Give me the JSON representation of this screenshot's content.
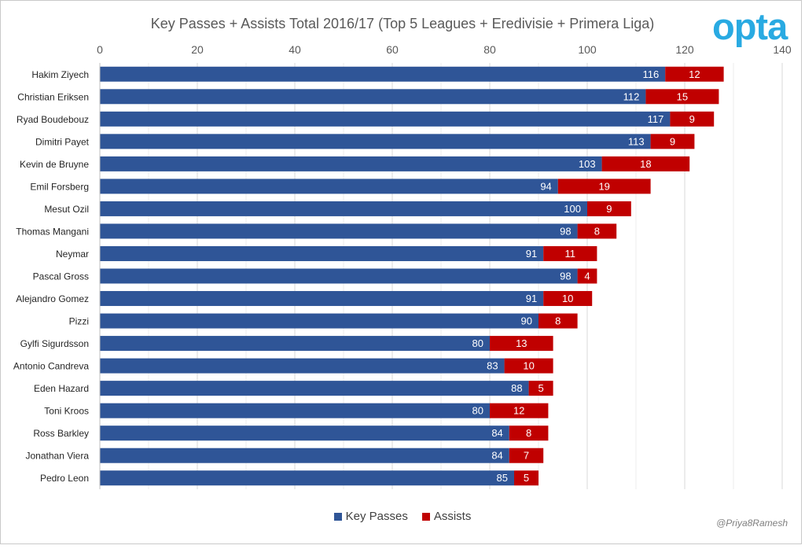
{
  "header": {
    "title": "Key Passes + Assists Total 2016/17 (Top 5 Leagues + Eredivisie + Primera Liga)",
    "logo_text": "opta"
  },
  "credit": "@Priya8Ramesh",
  "colors": {
    "key_passes": "#2f5597",
    "assists": "#c00000",
    "logo": "#29aae2"
  },
  "legend": {
    "key_passes_label": "Key Passes",
    "assists_label": "Assists"
  },
  "chart_data": {
    "type": "bar",
    "orientation": "horizontal",
    "stacked": true,
    "title": "Key Passes + Assists Total 2016/17 (Top 5 Leagues + Eredivisie + Primera Liga)",
    "xlim": [
      0,
      140
    ],
    "x_ticks": [
      0,
      20,
      40,
      60,
      80,
      100,
      120,
      140
    ],
    "x_axis_position": "top",
    "grid": true,
    "legend_position": "bottom",
    "categories": [
      "Hakim Ziyech",
      "Christian Eriksen",
      "Ryad Boudebouz",
      "Dimitri Payet",
      "Kevin de Bruyne",
      "Emil Forsberg",
      "Mesut Ozil",
      "Thomas Mangani",
      "Neymar",
      "Pascal Gross",
      "Alejandro Gomez",
      "Pizzi",
      "Gylfi Sigurdsson",
      "Antonio Candreva",
      "Eden Hazard",
      "Toni Kroos",
      "Ross Barkley",
      "Jonathan Viera",
      "Pedro Leon"
    ],
    "series": [
      {
        "name": "Key Passes",
        "values": [
          116,
          112,
          117,
          113,
          103,
          94,
          100,
          98,
          91,
          98,
          91,
          90,
          80,
          83,
          88,
          80,
          84,
          84,
          85
        ]
      },
      {
        "name": "Assists",
        "values": [
          12,
          15,
          9,
          9,
          18,
          19,
          9,
          8,
          11,
          4,
          10,
          8,
          13,
          10,
          5,
          12,
          8,
          7,
          5
        ]
      }
    ]
  }
}
